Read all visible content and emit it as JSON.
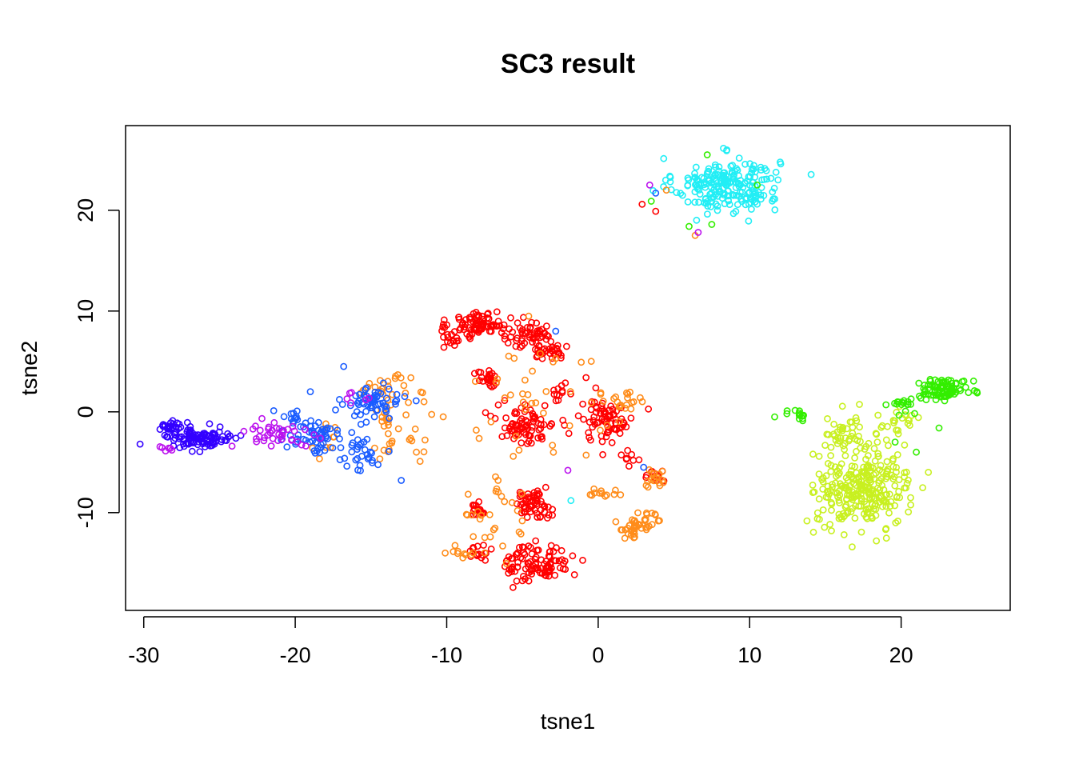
{
  "chart_data": {
    "type": "scatter",
    "title": "SC3 result",
    "xlabel": "tsne1",
    "ylabel": "tsne2",
    "xlim": [
      -31.2,
      27.2
    ],
    "ylim": [
      -19.7,
      28.4
    ],
    "x_ticks": [
      -30,
      -20,
      -10,
      0,
      10,
      20
    ],
    "y_ticks": [
      -10,
      0,
      10,
      20
    ],
    "x_tick_labels": [
      "-30",
      "-20",
      "-10",
      "0",
      "10",
      "20"
    ],
    "y_tick_labels": [
      "-10",
      "0",
      "10",
      "20"
    ],
    "grid": false,
    "legend": "none",
    "marker": "open-circle",
    "colors": {
      "red": "#ff0000",
      "orange": "#ff8c1a",
      "yellow_green": "#c8f020",
      "green": "#33ee00",
      "cyan": "#22eef5",
      "blue": "#1a5cff",
      "indigo": "#3300ff",
      "purple": "#bb11ee"
    },
    "clusters": [
      {
        "color": "cyan",
        "center": [
          8.5,
          22.5
        ],
        "spread": [
          2.3,
          1.8
        ],
        "n": 230
      },
      {
        "color": "red",
        "center": [
          -7.8,
          8.6
        ],
        "spread": [
          1.3,
          0.9
        ],
        "n": 90
      },
      {
        "color": "red",
        "center": [
          -4.5,
          7.6
        ],
        "spread": [
          1.2,
          0.9
        ],
        "n": 45
      },
      {
        "color": "red",
        "center": [
          -3.2,
          6.3
        ],
        "spread": [
          0.8,
          0.8
        ],
        "n": 35
      },
      {
        "color": "red",
        "center": [
          -9.6,
          7.2
        ],
        "spread": [
          0.5,
          0.6
        ],
        "n": 12
      },
      {
        "color": "red",
        "center": [
          -7.2,
          3.1
        ],
        "spread": [
          0.5,
          0.6
        ],
        "n": 25
      },
      {
        "color": "red",
        "center": [
          -4.8,
          -1.2
        ],
        "spread": [
          1.3,
          1.4
        ],
        "n": 80
      },
      {
        "color": "red",
        "center": [
          0.5,
          -0.8
        ],
        "spread": [
          1.3,
          1.4
        ],
        "n": 70
      },
      {
        "color": "red",
        "center": [
          -2.5,
          2.0
        ],
        "spread": [
          0.5,
          0.6
        ],
        "n": 12
      },
      {
        "color": "red",
        "center": [
          -4.3,
          -9.2
        ],
        "spread": [
          0.8,
          0.9
        ],
        "n": 55
      },
      {
        "color": "red",
        "center": [
          -4.0,
          -15.0
        ],
        "spread": [
          1.4,
          1.3
        ],
        "n": 100
      },
      {
        "color": "red",
        "center": [
          -7.9,
          -9.6
        ],
        "spread": [
          0.4,
          0.6
        ],
        "n": 18
      },
      {
        "color": "red",
        "center": [
          -7.9,
          -14.0
        ],
        "spread": [
          0.5,
          0.5
        ],
        "n": 16
      },
      {
        "color": "red",
        "center": [
          3.8,
          -6.2
        ],
        "spread": [
          0.6,
          0.5
        ],
        "n": 14
      },
      {
        "color": "red",
        "center": [
          2.0,
          -4.8
        ],
        "spread": [
          0.5,
          0.5
        ],
        "n": 8
      },
      {
        "color": "orange",
        "center": [
          -4.0,
          1.5
        ],
        "spread": [
          3.6,
          4.5
        ],
        "n": 40
      },
      {
        "color": "orange",
        "center": [
          1.5,
          0.8
        ],
        "spread": [
          1.2,
          1.0
        ],
        "n": 20
      },
      {
        "color": "orange",
        "center": [
          2.4,
          -11.5
        ],
        "spread": [
          0.8,
          0.7
        ],
        "n": 35
      },
      {
        "color": "orange",
        "center": [
          4.0,
          -6.5
        ],
        "spread": [
          0.5,
          0.8
        ],
        "n": 16
      },
      {
        "color": "orange",
        "center": [
          0.3,
          -8.2
        ],
        "spread": [
          0.6,
          0.3
        ],
        "n": 12
      },
      {
        "color": "orange",
        "center": [
          -7.3,
          -11.0
        ],
        "spread": [
          2.0,
          3.5
        ],
        "n": 30
      },
      {
        "color": "orange",
        "center": [
          -9.2,
          -14.0
        ],
        "spread": [
          0.8,
          0.6
        ],
        "n": 8
      },
      {
        "color": "orange",
        "center": [
          -14.0,
          2.3
        ],
        "spread": [
          1.1,
          0.8
        ],
        "n": 25
      },
      {
        "color": "orange",
        "center": [
          -13.5,
          -2.0
        ],
        "spread": [
          1.3,
          2.6
        ],
        "n": 30
      },
      {
        "color": "orange",
        "center": [
          -18.0,
          -3.0
        ],
        "spread": [
          0.8,
          1.8
        ],
        "n": 10
      },
      {
        "color": "orange",
        "center": [
          3.5,
          -10.5
        ],
        "spread": [
          0.6,
          0.6
        ],
        "n": 10
      },
      {
        "color": "yellow_green",
        "center": [
          17.5,
          -7.5
        ],
        "spread": [
          2.0,
          2.6
        ],
        "n": 280
      },
      {
        "color": "yellow_green",
        "center": [
          16.5,
          -2.5
        ],
        "spread": [
          1.5,
          1.3
        ],
        "n": 40
      },
      {
        "color": "yellow_green",
        "center": [
          19.8,
          -1.0
        ],
        "spread": [
          1.0,
          1.0
        ],
        "n": 20
      },
      {
        "color": "green",
        "center": [
          22.8,
          2.3
        ],
        "spread": [
          1.1,
          0.7
        ],
        "n": 90
      },
      {
        "color": "green",
        "center": [
          20.5,
          0.8
        ],
        "spread": [
          0.8,
          0.6
        ],
        "n": 15
      },
      {
        "color": "green",
        "center": [
          13.2,
          -0.3
        ],
        "spread": [
          0.5,
          0.3
        ],
        "n": 14
      },
      {
        "color": "blue",
        "center": [
          -15.0,
          0.8
        ],
        "spread": [
          1.3,
          1.0
        ],
        "n": 60
      },
      {
        "color": "blue",
        "center": [
          -18.5,
          -2.4
        ],
        "spread": [
          1.2,
          1.1
        ],
        "n": 55
      },
      {
        "color": "blue",
        "center": [
          -15.8,
          -4.2
        ],
        "spread": [
          1.0,
          1.2
        ],
        "n": 30
      },
      {
        "color": "blue",
        "center": [
          -20.2,
          -0.6
        ],
        "spread": [
          0.6,
          0.6
        ],
        "n": 12
      },
      {
        "color": "indigo",
        "center": [
          -26.4,
          -2.6
        ],
        "spread": [
          1.6,
          0.8
        ],
        "n": 110
      },
      {
        "color": "indigo",
        "center": [
          -28.3,
          -1.4
        ],
        "spread": [
          0.5,
          0.4
        ],
        "n": 20
      },
      {
        "color": "purple",
        "center": [
          -21.5,
          -2.2
        ],
        "spread": [
          1.8,
          1.0
        ],
        "n": 40
      },
      {
        "color": "purple",
        "center": [
          -28.4,
          -3.6
        ],
        "spread": [
          0.4,
          0.3
        ],
        "n": 6
      },
      {
        "color": "purple",
        "center": [
          -16.0,
          1.2
        ],
        "spread": [
          0.6,
          0.6
        ],
        "n": 6
      }
    ],
    "points": [
      {
        "x": -16.8,
        "y": 4.5,
        "color": "blue"
      },
      {
        "x": -19.0,
        "y": 2.0,
        "color": "blue"
      },
      {
        "x": -13.0,
        "y": -6.8,
        "color": "blue"
      },
      {
        "x": -2.8,
        "y": 8.0,
        "color": "blue"
      },
      {
        "x": 4.5,
        "y": 22.0,
        "color": "orange"
      },
      {
        "x": 3.8,
        "y": 21.7,
        "color": "blue"
      },
      {
        "x": 3.4,
        "y": 22.5,
        "color": "purple"
      },
      {
        "x": 2.9,
        "y": 20.6,
        "color": "red"
      },
      {
        "x": 3.8,
        "y": 19.9,
        "color": "red"
      },
      {
        "x": 3.5,
        "y": 20.9,
        "color": "green"
      },
      {
        "x": 6.4,
        "y": 17.5,
        "color": "orange"
      },
      {
        "x": 6.6,
        "y": 17.8,
        "color": "purple"
      },
      {
        "x": 7.2,
        "y": 25.5,
        "color": "green"
      },
      {
        "x": 7.5,
        "y": 18.6,
        "color": "green"
      },
      {
        "x": 10.5,
        "y": 22.5,
        "color": "green"
      },
      {
        "x": 6.0,
        "y": 18.4,
        "color": "green"
      },
      {
        "x": -1.8,
        "y": -8.8,
        "color": "cyan"
      },
      {
        "x": -2.0,
        "y": -5.8,
        "color": "purple"
      },
      {
        "x": 3.0,
        "y": -5.5,
        "color": "blue"
      },
      {
        "x": -0.8,
        "y": 3.4,
        "color": "red"
      },
      {
        "x": -11.5,
        "y": 1.0,
        "color": "orange"
      },
      {
        "x": -12.0,
        "y": -4.0,
        "color": "orange"
      },
      {
        "x": 19.6,
        "y": -3.0,
        "color": "green"
      },
      {
        "x": 19.0,
        "y": 0.7,
        "color": "green"
      },
      {
        "x": 21.0,
        "y": -4.0,
        "color": "green"
      },
      {
        "x": 21.8,
        "y": -6.0,
        "color": "yellow_green"
      },
      {
        "x": 22.5,
        "y": -1.6,
        "color": "green"
      },
      {
        "x": 25.0,
        "y": 2.0,
        "color": "green"
      }
    ]
  }
}
